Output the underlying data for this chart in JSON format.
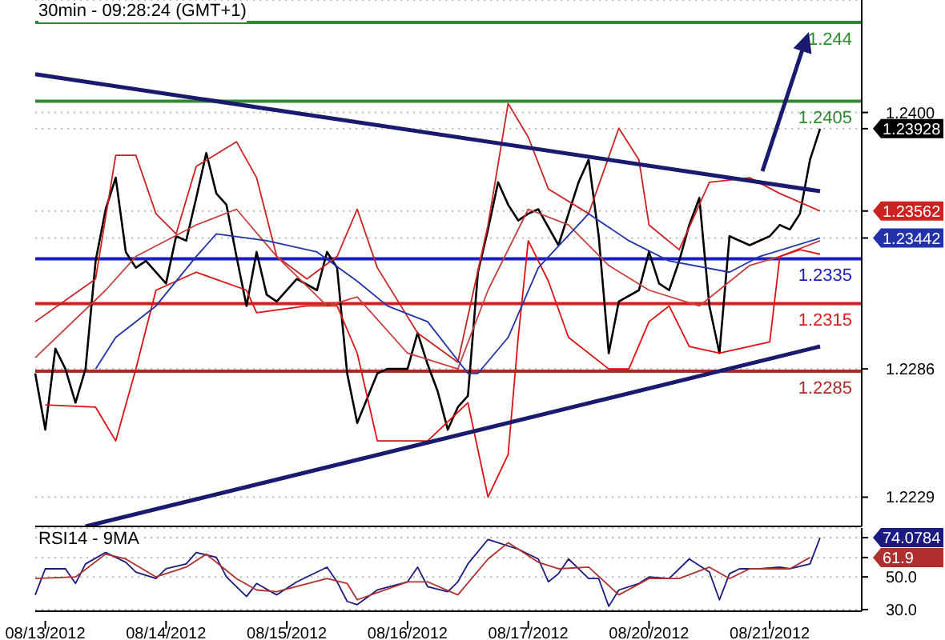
{
  "chart_data": [
    {
      "type": "line",
      "title": "30min - 09:28:24 (GMT+1)",
      "categories": [
        null,
        null,
        null,
        null,
        null,
        null,
        null,
        null,
        null,
        null,
        null,
        null,
        null,
        null,
        null,
        null,
        null,
        null,
        null,
        null,
        null,
        null,
        null,
        null,
        null,
        null,
        null,
        null,
        null,
        null,
        null,
        null,
        null,
        null,
        null,
        null,
        null,
        null,
        null,
        null,
        null,
        null,
        null,
        null,
        null,
        null,
        null,
        null,
        null,
        null,
        null,
        null,
        null,
        null,
        null,
        null,
        null,
        null,
        null,
        null,
        null,
        null,
        null,
        null,
        null,
        null,
        null,
        null,
        null,
        null,
        null,
        null,
        null,
        null,
        null,
        null,
        null,
        null,
        null
      ],
      "ylim": [
        1.2216,
        1.245
      ],
      "yticks": [
        1.23928,
        1.23562,
        1.23442,
        {
          "value": 1.24,
          "label": "1.2400"
        },
        1.2286,
        1.2229
      ],
      "tick_labels": "y",
      "grid": "y",
      "series": [
        {
          "color": "#000000",
          "values": [
            1.2284,
            1.2259,
            1.2295,
            1.2286,
            1.2271,
            1.2286,
            1.2334,
            1.2357,
            1.2371,
            1.2338,
            1.2331,
            1.2334,
            null,
            1.2324,
            1.2345,
            1.2343,
            1.2362,
            1.2382,
            1.2364,
            1.2359,
            1.2336,
            1.2314,
            1.2338,
            1.2319,
            1.2316,
            null,
            1.2326,
            null,
            1.2321,
            1.2338,
            1.2331,
            1.2284,
            1.2262,
            null,
            1.2284,
            1.2286,
            null,
            1.2286,
            1.2302,
            1.2288,
            1.2276,
            1.2259,
            1.2269,
            1.2274,
            1.2329,
            1.2348,
            1.2369,
            1.2359,
            1.2352,
            1.2355,
            1.2357,
            null,
            1.2341,
            1.2355,
            1.2369,
            1.2379,
            1.2345,
            1.2293,
            1.2316,
            null,
            1.2321,
            1.2338,
            1.2324,
            1.2321,
            1.2334,
            1.235,
            1.2362,
            1.2314,
            1.2293,
            1.2345,
            null,
            1.2341,
            null,
            1.2345,
            1.235,
            1.2348,
            1.2355,
            1.2379,
            1.23928
          ]
        },
        {
          "color": "#cc2222",
          "values": [
            1.2307,
            null,
            null,
            null,
            null,
            null,
            1.2326,
            null,
            1.2381,
            null,
            1.2381,
            null,
            1.2355,
            null,
            1.2346,
            null,
            1.2376,
            null,
            null,
            null,
            1.2387,
            null,
            1.2371,
            null,
            1.2336,
            null,
            null,
            1.2326,
            null,
            null,
            1.2336,
            null,
            1.2357,
            null,
            1.2331,
            null,
            null,
            null,
            1.2302,
            null,
            null,
            null,
            1.2289,
            null,
            null,
            1.235,
            null,
            1.2404,
            null,
            1.2389,
            null,
            1.2366,
            null,
            null,
            null,
            1.2355,
            null,
            null,
            1.2393,
            null,
            1.2379,
            1.235,
            null,
            null,
            1.2339,
            null,
            null,
            1.2369,
            null,
            null,
            null,
            1.2371,
            null,
            null,
            1.2364,
            null,
            null,
            null,
            1.23562
          ]
        },
        {
          "color": "#c84040",
          "values": [
            1.2291,
            null,
            null,
            null,
            null,
            null,
            null,
            1.2321,
            null,
            null,
            1.2336,
            null,
            null,
            null,
            null,
            null,
            1.235,
            null,
            null,
            null,
            1.2357,
            null,
            null,
            null,
            1.2336,
            null,
            null,
            null,
            null,
            1.2314,
            null,
            null,
            1.2318,
            null,
            null,
            null,
            null,
            1.2293,
            null,
            null,
            null,
            null,
            1.2286,
            null,
            null,
            1.2321,
            null,
            null,
            null,
            1.2357,
            null,
            null,
            null,
            1.235,
            null,
            null,
            null,
            1.2332,
            null,
            null,
            null,
            1.2321,
            null,
            null,
            null,
            null,
            1.2314,
            null,
            null,
            null,
            null,
            1.2332,
            null,
            null,
            1.2336,
            null,
            null,
            null,
            1.2343
          ]
        },
        {
          "color": "#dd1111",
          "values": [
            null,
            1.227,
            null,
            null,
            null,
            null,
            1.2269,
            null,
            1.2254,
            null,
            1.2286,
            null,
            1.2321,
            null,
            null,
            null,
            1.2329,
            null,
            null,
            null,
            null,
            1.2321,
            1.2311,
            null,
            null,
            null,
            null,
            1.2314,
            null,
            null,
            1.2314,
            null,
            1.2293,
            null,
            1.2254,
            null,
            null,
            null,
            null,
            1.2254,
            null,
            null,
            null,
            1.2271,
            null,
            1.2229,
            null,
            1.2248,
            1.23,
            1.2343,
            null,
            1.2325,
            null,
            1.23,
            null,
            null,
            null,
            1.2286,
            null,
            1.2286,
            null,
            1.2307,
            null,
            1.2314,
            null,
            1.2296,
            null,
            null,
            1.2293,
            null,
            null,
            null,
            null,
            1.2298,
            1.2336,
            null,
            1.2339,
            null,
            1.2337
          ]
        },
        {
          "color": "#2233aa",
          "values": [
            null,
            null,
            null,
            null,
            null,
            null,
            1.2286,
            null,
            1.23,
            null,
            null,
            null,
            1.2314,
            null,
            null,
            null,
            1.2336,
            null,
            1.2346,
            null,
            null,
            null,
            null,
            1.2343,
            null,
            null,
            null,
            null,
            1.2338,
            null,
            null,
            null,
            1.2325,
            null,
            null,
            1.2314,
            null,
            null,
            null,
            1.2307,
            null,
            null,
            null,
            1.2284,
            1.2284,
            null,
            null,
            1.23,
            null,
            null,
            1.2331,
            null,
            null,
            null,
            null,
            1.2355,
            null,
            null,
            null,
            1.2343,
            null,
            null,
            null,
            1.2334,
            null,
            null,
            null,
            null,
            null,
            1.2329,
            null,
            null,
            1.2336,
            null,
            null,
            null,
            null,
            null,
            1.23442
          ]
        },
        {
          "color": "#1a1a6e",
          "values": [
            1.2417,
            null,
            null,
            null,
            null,
            null,
            null,
            null,
            null,
            null,
            null,
            null,
            null,
            null,
            null,
            null,
            null,
            null,
            null,
            null,
            null,
            null,
            null,
            null,
            null,
            null,
            null,
            null,
            null,
            null,
            null,
            null,
            null,
            null,
            null,
            null,
            null,
            null,
            null,
            null,
            null,
            null,
            null,
            null,
            null,
            null,
            null,
            null,
            null,
            null,
            null,
            null,
            null,
            null,
            null,
            null,
            null,
            null,
            null,
            null,
            null,
            null,
            null,
            null,
            null,
            null,
            null,
            null,
            null,
            null,
            null,
            null,
            null,
            null,
            null,
            null,
            null,
            null,
            1.2365
          ]
        },
        {
          "color": "#1a1a6f",
          "values": [
            null,
            null,
            null,
            null,
            null,
            1.2216,
            null,
            null,
            null,
            null,
            null,
            null,
            null,
            null,
            null,
            null,
            null,
            null,
            null,
            null,
            null,
            null,
            null,
            null,
            null,
            null,
            null,
            null,
            null,
            null,
            null,
            null,
            null,
            null,
            null,
            null,
            null,
            null,
            null,
            null,
            null,
            null,
            null,
            null,
            null,
            null,
            null,
            null,
            null,
            null,
            null,
            null,
            null,
            null,
            null,
            null,
            null,
            null,
            null,
            null,
            null,
            null,
            null,
            null,
            null,
            null,
            null,
            null,
            null,
            null,
            null,
            null,
            null,
            null,
            null,
            null,
            null,
            null,
            1.2296
          ]
        }
      ],
      "ref_lines": [
        {
          "axis": "y",
          "value": 1.244,
          "label": "1.244",
          "color": "#2e8b2e"
        },
        {
          "axis": "y",
          "value": 1.2405,
          "label": "1.2405",
          "color": "#2e8b2e"
        },
        {
          "axis": "y",
          "value": 1.2335,
          "label": "1.2335",
          "color": "#1c1cc0"
        },
        {
          "axis": "y",
          "value": 1.2315,
          "label": "1.2315",
          "color": "#d42020"
        },
        {
          "axis": "y",
          "value": 1.2285,
          "label": "1.2285",
          "color": "#b02828"
        }
      ]
    },
    {
      "type": "line",
      "title": "RSI14 - 9MA",
      "categories": [
        null,
        "08/13/2012",
        null,
        null,
        null,
        null,
        null,
        null,
        null,
        null,
        null,
        null,
        null,
        "08/14/2012",
        null,
        null,
        null,
        null,
        null,
        null,
        null,
        null,
        null,
        null,
        null,
        "08/15/2012",
        null,
        null,
        null,
        null,
        null,
        null,
        null,
        null,
        null,
        null,
        null,
        "08/16/2012",
        null,
        null,
        null,
        null,
        null,
        null,
        null,
        null,
        null,
        null,
        null,
        "08/17/2012",
        null,
        null,
        null,
        null,
        null,
        null,
        null,
        null,
        null,
        null,
        null,
        "08/20/2012",
        null,
        null,
        null,
        null,
        null,
        null,
        null,
        null,
        null,
        null,
        null,
        "08/21/2012",
        null,
        null,
        null,
        null,
        null
      ],
      "ylim": [
        29,
        80
      ],
      "yticks": [
        74.0784,
        61.9,
        {
          "value": 50,
          "label": "50.0"
        },
        {
          "value": 30,
          "label": "30.0"
        }
      ],
      "grid": "y",
      "series": [
        {
          "color": "#1a1a80",
          "values": [
            39,
            55,
            null,
            55,
            46,
            58,
            null,
            65,
            62,
            59,
            53,
            null,
            49,
            55,
            null,
            58,
            65,
            null,
            62,
            50,
            null,
            38,
            46,
            null,
            39,
            null,
            47,
            null,
            null,
            56,
            47,
            35,
            33,
            null,
            42,
            null,
            null,
            47,
            56,
            44,
            null,
            41,
            47,
            58,
            null,
            73,
            71,
            null,
            67,
            null,
            61,
            47,
            52,
            61,
            null,
            49,
            49,
            32,
            42,
            null,
            46,
            50,
            null,
            49,
            null,
            61,
            null,
            53,
            36,
            52,
            55,
            null,
            55,
            null,
            56,
            55,
            null,
            58,
            74.0784
          ]
        },
        {
          "color": "#b03030",
          "values": [
            49,
            null,
            null,
            null,
            50,
            null,
            null,
            64,
            null,
            61,
            null,
            null,
            50,
            null,
            null,
            56,
            null,
            64,
            null,
            null,
            49,
            null,
            42,
            null,
            41,
            null,
            null,
            null,
            null,
            49,
            null,
            46,
            36,
            null,
            null,
            null,
            null,
            47,
            null,
            47,
            null,
            null,
            39,
            null,
            null,
            61,
            null,
            71,
            null,
            null,
            59,
            null,
            55,
            null,
            null,
            56,
            null,
            null,
            39,
            null,
            null,
            49,
            null,
            null,
            49,
            null,
            null,
            56,
            null,
            49,
            null,
            55,
            null,
            null,
            null,
            55,
            null,
            61.9,
            null
          ]
        }
      ]
    }
  ]
}
